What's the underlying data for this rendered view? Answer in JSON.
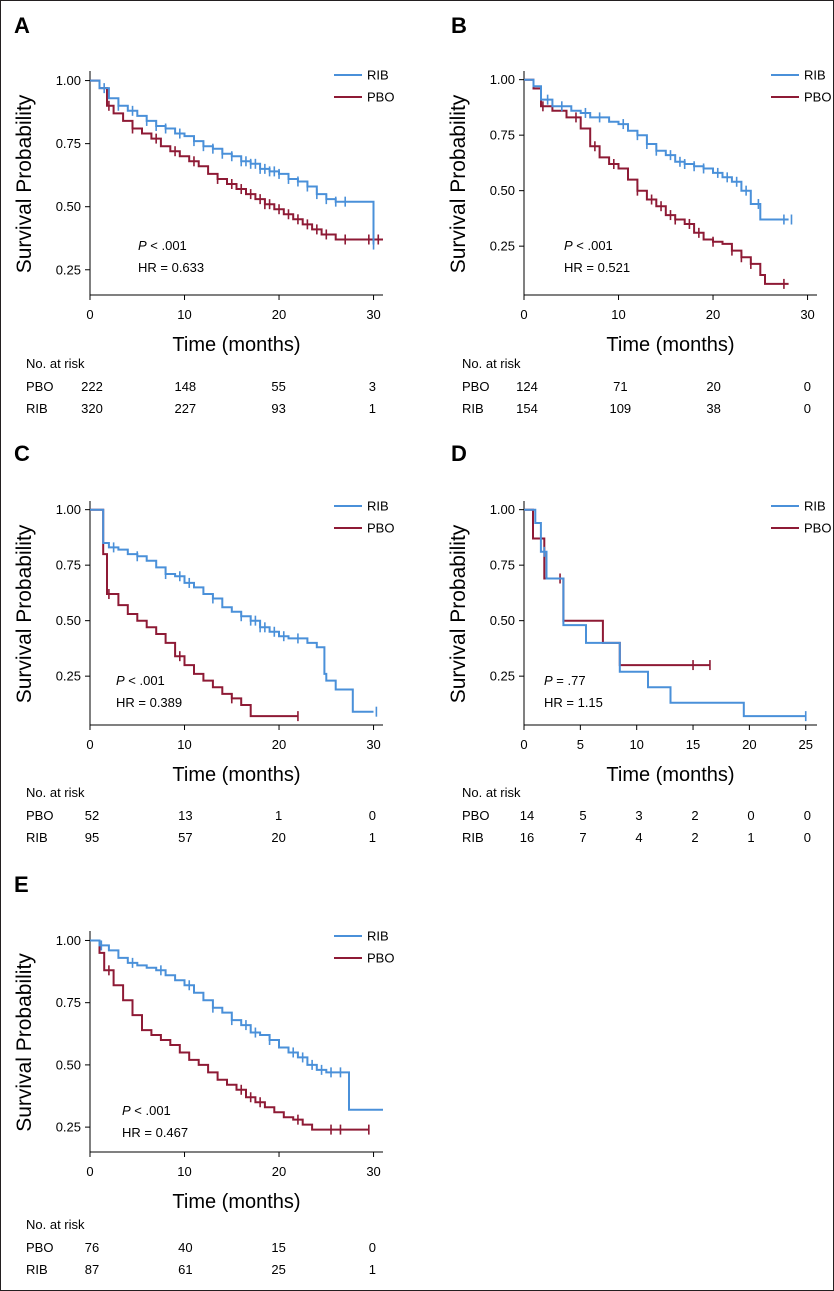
{
  "colors": {
    "RIB": "#4a90d9",
    "PBO": "#8e1a35"
  },
  "chart_data": [
    {
      "panel": "A",
      "type": "line",
      "xlabel": "Time (months)",
      "ylabel": "Survival Probability",
      "xlim": [
        0,
        31
      ],
      "ylim": [
        0.15,
        1.03
      ],
      "xticks": [
        0,
        10,
        20,
        30
      ],
      "yticks": [
        0.25,
        0.5,
        0.75,
        1.0
      ],
      "ytick_labels": [
        "0.25",
        "0.50",
        "0.75",
        "1.00"
      ],
      "legend": [
        "RIB",
        "PBO"
      ],
      "p_prefix": "P",
      "p_value": " < .001",
      "hr": "HR = 0.633",
      "series": [
        {
          "name": "RIB",
          "x": [
            0,
            1,
            2,
            3,
            4,
            5,
            6,
            7,
            8,
            9,
            10,
            11,
            12,
            13,
            14,
            15,
            16,
            17,
            18,
            19,
            20,
            21,
            22,
            23,
            24,
            25,
            26,
            27,
            28,
            29.7,
            30
          ],
          "y": [
            1.0,
            0.97,
            0.93,
            0.9,
            0.88,
            0.86,
            0.84,
            0.82,
            0.81,
            0.79,
            0.78,
            0.76,
            0.74,
            0.73,
            0.71,
            0.7,
            0.68,
            0.67,
            0.65,
            0.64,
            0.63,
            0.61,
            0.6,
            0.58,
            0.55,
            0.53,
            0.52,
            0.52,
            0.52,
            0.52,
            0.35
          ],
          "censor": [
            1.5,
            3,
            4.5,
            6,
            7,
            8,
            9.5,
            11,
            12,
            13,
            14,
            15,
            16,
            16.5,
            17,
            17.5,
            18,
            18.5,
            19,
            19.5,
            20,
            21,
            22,
            23,
            24,
            25,
            26,
            27,
            30
          ]
        },
        {
          "name": "PBO",
          "x": [
            0,
            1,
            1.8,
            2.5,
            3.5,
            4.5,
            5.5,
            6.5,
            7.5,
            8.5,
            9.5,
            10.5,
            11.5,
            12.5,
            13.5,
            14.5,
            15.5,
            16.5,
            17.5,
            18.5,
            19.5,
            20.5,
            21.5,
            22.5,
            23.5,
            24.5,
            26,
            31
          ],
          "y": [
            1.0,
            0.97,
            0.9,
            0.87,
            0.84,
            0.81,
            0.79,
            0.77,
            0.74,
            0.72,
            0.7,
            0.68,
            0.66,
            0.63,
            0.61,
            0.59,
            0.57,
            0.55,
            0.53,
            0.51,
            0.49,
            0.47,
            0.45,
            0.43,
            0.41,
            0.39,
            0.37,
            0.37
          ],
          "censor": [
            2,
            4.5,
            7,
            9,
            11,
            13.5,
            15,
            16,
            17,
            18,
            18.5,
            19,
            20,
            21,
            22,
            23,
            24,
            25,
            27,
            29.5,
            30.5
          ]
        }
      ],
      "risk": {
        "title": "No. at risk",
        "times": [
          0,
          10,
          20,
          30
        ],
        "rows": [
          {
            "label": "PBO",
            "values": [
              "222",
              "148",
              "55",
              "3"
            ]
          },
          {
            "label": "RIB",
            "values": [
              "320",
              "227",
              "93",
              "1"
            ]
          }
        ]
      }
    },
    {
      "panel": "B",
      "type": "line",
      "xlabel": "Time (months)",
      "ylabel": "Survival Probability",
      "xlim": [
        0,
        31
      ],
      "ylim": [
        0.03,
        1.03
      ],
      "xticks": [
        0,
        10,
        20,
        30
      ],
      "yticks": [
        0.25,
        0.5,
        0.75,
        1.0
      ],
      "ytick_labels": [
        "0.25",
        "0.50",
        "0.75",
        "1.00"
      ],
      "legend": [
        "RIB",
        "PBO"
      ],
      "p_prefix": "P",
      "p_value": " < .001",
      "hr": "HR = 0.521",
      "series": [
        {
          "name": "RIB",
          "x": [
            0,
            1,
            1.8,
            3,
            5,
            6,
            7,
            9,
            10,
            11,
            12,
            13,
            14,
            15,
            16,
            17,
            18,
            19,
            20,
            21,
            22,
            23,
            24,
            25,
            28
          ],
          "y": [
            1.0,
            0.97,
            0.91,
            0.88,
            0.86,
            0.85,
            0.83,
            0.81,
            0.8,
            0.77,
            0.75,
            0.71,
            0.68,
            0.66,
            0.63,
            0.62,
            0.61,
            0.6,
            0.58,
            0.56,
            0.54,
            0.5,
            0.44,
            0.37,
            0.37
          ],
          "censor": [
            2.5,
            4,
            6.5,
            8,
            10.5,
            12,
            13,
            14,
            15.5,
            16.5,
            17,
            18,
            19,
            20.5,
            21.5,
            22.5,
            23.5,
            24.8,
            27.5,
            28.3
          ]
        },
        {
          "name": "PBO",
          "x": [
            0,
            1,
            1.8,
            3,
            4.5,
            6,
            7,
            8,
            9,
            10,
            11,
            12,
            13,
            14,
            15,
            16,
            17,
            18,
            19,
            20,
            21,
            22,
            23,
            24,
            25,
            25.5,
            28
          ],
          "y": [
            1.0,
            0.96,
            0.88,
            0.86,
            0.83,
            0.78,
            0.7,
            0.65,
            0.62,
            0.6,
            0.55,
            0.5,
            0.46,
            0.43,
            0.39,
            0.37,
            0.35,
            0.31,
            0.28,
            0.27,
            0.26,
            0.23,
            0.2,
            0.17,
            0.12,
            0.08,
            0.08
          ],
          "censor": [
            2,
            5.5,
            7.5,
            9.5,
            12,
            13.5,
            14.5,
            15.5,
            16,
            17.5,
            18.5,
            20,
            22,
            23,
            24,
            27.5
          ]
        }
      ],
      "risk": {
        "title": "No. at risk",
        "times": [
          0,
          10,
          20,
          30
        ],
        "rows": [
          {
            "label": "PBO",
            "values": [
              "124",
              "71",
              "20",
              "0"
            ]
          },
          {
            "label": "RIB",
            "values": [
              "154",
              "109",
              "38",
              "0"
            ]
          }
        ]
      }
    },
    {
      "panel": "C",
      "type": "line",
      "xlabel": "Time (months)",
      "ylabel": "Survival Probability",
      "xlim": [
        0,
        31
      ],
      "ylim": [
        0.03,
        1.03
      ],
      "xticks": [
        0,
        10,
        20,
        30
      ],
      "yticks": [
        0.25,
        0.5,
        0.75,
        1.0
      ],
      "ytick_labels": [
        "0.25",
        "0.50",
        "0.75",
        "1.00"
      ],
      "legend": [
        "RIB",
        "PBO"
      ],
      "p_prefix": "P",
      "p_value": " < .001",
      "hr": "HR = 0.389",
      "series": [
        {
          "name": "RIB",
          "x": [
            0,
            1.4,
            2,
            3,
            4,
            5,
            6,
            7,
            8,
            9,
            10,
            11,
            12,
            13,
            14,
            15,
            16,
            17,
            18,
            19,
            20,
            21,
            22,
            23,
            24,
            24.8,
            25,
            26,
            27.8,
            30
          ],
          "y": [
            1.0,
            0.85,
            0.83,
            0.82,
            0.8,
            0.79,
            0.77,
            0.74,
            0.71,
            0.7,
            0.67,
            0.65,
            0.62,
            0.6,
            0.56,
            0.54,
            0.52,
            0.5,
            0.47,
            0.45,
            0.43,
            0.42,
            0.42,
            0.4,
            0.38,
            0.26,
            0.23,
            0.19,
            0.09,
            0.09
          ],
          "censor": [
            2.5,
            5,
            8,
            9.5,
            10.5,
            13,
            16,
            17,
            17.5,
            18,
            18.5,
            19.5,
            20.5,
            22,
            30.3
          ]
        },
        {
          "name": "PBO",
          "x": [
            0,
            1.4,
            1.8,
            3,
            4,
            5,
            6,
            7,
            8,
            9,
            10,
            11,
            12,
            13,
            14,
            15,
            16,
            17,
            22
          ],
          "y": [
            1.0,
            0.8,
            0.62,
            0.57,
            0.53,
            0.5,
            0.47,
            0.44,
            0.4,
            0.34,
            0.3,
            0.26,
            0.23,
            0.2,
            0.17,
            0.15,
            0.12,
            0.07,
            0.07
          ],
          "censor": [
            2,
            9.5,
            15,
            22
          ]
        }
      ],
      "risk": {
        "title": "No. at risk",
        "times": [
          0,
          10,
          20,
          30
        ],
        "rows": [
          {
            "label": "PBO",
            "values": [
              "52",
              "13",
              "1",
              "0"
            ]
          },
          {
            "label": "RIB",
            "values": [
              "95",
              "57",
              "20",
              "1"
            ]
          }
        ]
      }
    },
    {
      "panel": "D",
      "type": "line",
      "xlabel": "Time (months)",
      "ylabel": "Survival Probability",
      "xlim": [
        0,
        26
      ],
      "ylim": [
        0.03,
        1.03
      ],
      "xticks": [
        0,
        5,
        10,
        15,
        20,
        25
      ],
      "yticks": [
        0.25,
        0.5,
        0.75,
        1.0
      ],
      "ytick_labels": [
        "0.25",
        "0.50",
        "0.75",
        "1.00"
      ],
      "legend": [
        "RIB",
        "PBO"
      ],
      "p_prefix": "P",
      "p_value": " = .77",
      "hr": "HR = 1.15",
      "series": [
        {
          "name": "RIB",
          "x": [
            0,
            1,
            1.5,
            2,
            3.5,
            4.5,
            5.5,
            6.5,
            8.5,
            10,
            11,
            13,
            19.5,
            25
          ],
          "y": [
            1.0,
            0.94,
            0.81,
            0.69,
            0.48,
            0.48,
            0.4,
            0.4,
            0.27,
            0.27,
            0.2,
            0.13,
            0.07,
            0.07
          ],
          "censor": [
            1.8,
            25
          ]
        },
        {
          "name": "PBO",
          "x": [
            0,
            0.8,
            1.8,
            3.5,
            5,
            7,
            8.5,
            16.5
          ],
          "y": [
            1.0,
            0.87,
            0.69,
            0.5,
            0.5,
            0.4,
            0.3,
            0.3
          ],
          "censor": [
            3.2,
            15,
            16.5
          ]
        }
      ],
      "risk": {
        "title": "No. at risk",
        "times": [
          0,
          5,
          10,
          15,
          20,
          25
        ],
        "rows": [
          {
            "label": "PBO",
            "values": [
              "14",
              "5",
              "3",
              "2",
              "0",
              "0"
            ]
          },
          {
            "label": "RIB",
            "values": [
              "16",
              "7",
              "4",
              "2",
              "1",
              "0"
            ]
          }
        ]
      }
    },
    {
      "panel": "E",
      "type": "line",
      "xlabel": "Time (months)",
      "ylabel": "Survival Probability",
      "xlim": [
        0,
        31
      ],
      "ylim": [
        0.15,
        1.03
      ],
      "xticks": [
        0,
        10,
        20,
        30
      ],
      "yticks": [
        0.25,
        0.5,
        0.75,
        1.0
      ],
      "ytick_labels": [
        "0.25",
        "0.50",
        "0.75",
        "1.00"
      ],
      "legend": [
        "RIB",
        "PBO"
      ],
      "p_prefix": "P",
      "p_value": " < .001",
      "hr": "HR = 0.467",
      "series": [
        {
          "name": "RIB",
          "x": [
            0,
            1,
            2,
            3,
            4,
            5,
            6,
            7,
            8,
            9,
            10,
            11,
            12,
            13,
            14,
            15,
            16,
            17,
            18,
            19,
            20,
            21,
            22,
            23,
            24,
            25,
            26,
            27.4,
            31
          ],
          "y": [
            1.0,
            0.98,
            0.96,
            0.93,
            0.91,
            0.9,
            0.89,
            0.88,
            0.86,
            0.84,
            0.82,
            0.79,
            0.76,
            0.73,
            0.71,
            0.68,
            0.66,
            0.63,
            0.62,
            0.6,
            0.57,
            0.55,
            0.53,
            0.5,
            0.48,
            0.47,
            0.47,
            0.32,
            0.32
          ],
          "censor": [
            1.2,
            4.5,
            7.5,
            10.5,
            13,
            15,
            16.5,
            17.5,
            19,
            21.5,
            22.5,
            23.5,
            24.5,
            25.5,
            26.5
          ]
        },
        {
          "name": "PBO",
          "x": [
            0,
            1,
            1.5,
            2.5,
            3.5,
            4.5,
            5.5,
            6.5,
            7.5,
            8.5,
            9.5,
            10.5,
            11.5,
            12.5,
            13.5,
            14.5,
            15.5,
            16.5,
            17.5,
            18.5,
            19.5,
            20.5,
            21.5,
            22.5,
            23.5,
            29.5
          ],
          "y": [
            1.0,
            0.95,
            0.88,
            0.82,
            0.76,
            0.7,
            0.64,
            0.62,
            0.6,
            0.58,
            0.55,
            0.52,
            0.5,
            0.47,
            0.44,
            0.42,
            0.4,
            0.37,
            0.35,
            0.33,
            0.31,
            0.29,
            0.28,
            0.26,
            0.24,
            0.24
          ],
          "censor": [
            2,
            16,
            17,
            18,
            22,
            25.5,
            26.5,
            29.5
          ]
        }
      ],
      "risk": {
        "title": "No. at risk",
        "times": [
          0,
          10,
          20,
          30
        ],
        "rows": [
          {
            "label": "PBO",
            "values": [
              "76",
              "40",
              "15",
              "0"
            ]
          },
          {
            "label": "RIB",
            "values": [
              "87",
              "61",
              "25",
              "1"
            ]
          }
        ]
      }
    }
  ]
}
